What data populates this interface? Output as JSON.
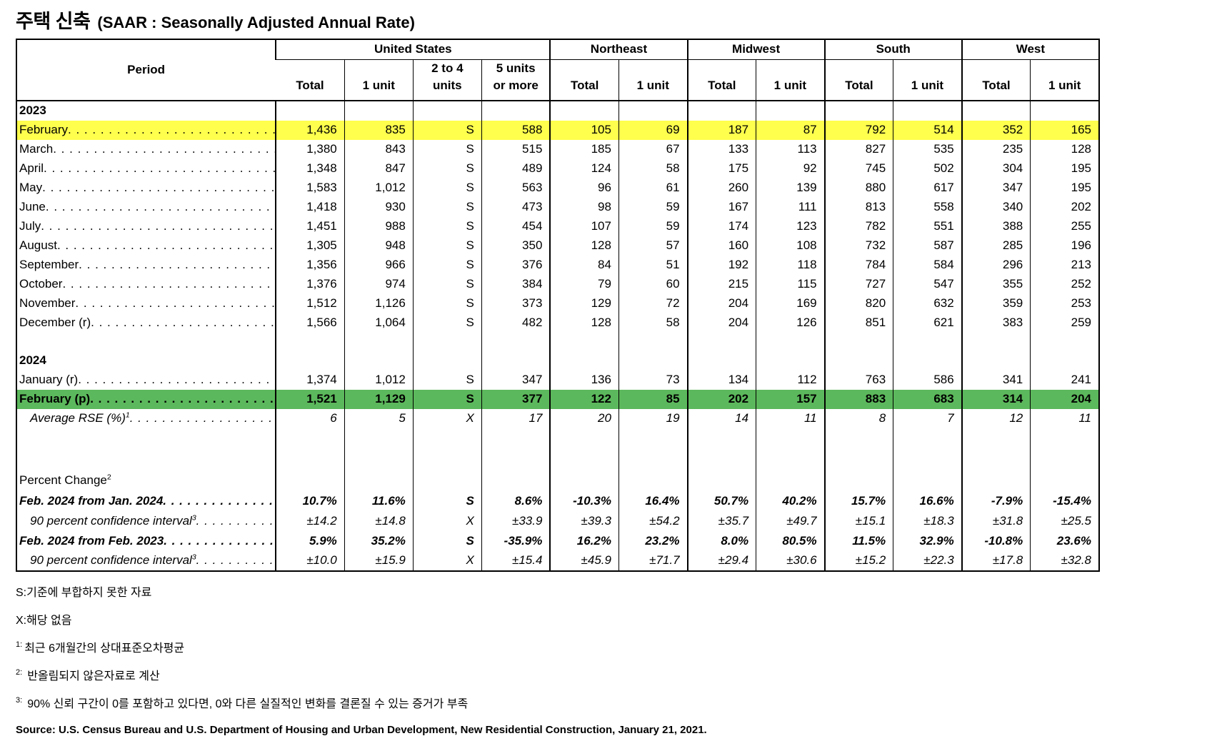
{
  "title": {
    "korean": "주택 신축",
    "english": "(SAAR : Seasonally Adjusted Annual Rate)"
  },
  "colors": {
    "highlight_yellow": "#FFFF4D",
    "highlight_green": "#5CB85C"
  },
  "table": {
    "period_header": "Period",
    "groups": [
      {
        "label": "United States",
        "span": 4
      },
      {
        "label": "Northeast",
        "span": 2
      },
      {
        "label": "Midwest",
        "span": 2
      },
      {
        "label": "South",
        "span": 2
      },
      {
        "label": "West",
        "span": 2
      }
    ],
    "subheaders": [
      "Total",
      "1 unit",
      "2 to 4\nunits",
      "5 units\nor more",
      "Total",
      "1 unit",
      "Total",
      "1 unit",
      "Total",
      "1 unit",
      "Total",
      "1 unit"
    ],
    "rows": [
      {
        "t": "year",
        "label": "2023"
      },
      {
        "t": "m",
        "label": "February",
        "hl": "yellow",
        "v": [
          "1,436",
          "835",
          "S",
          "588",
          "105",
          "69",
          "187",
          "87",
          "792",
          "514",
          "352",
          "165"
        ]
      },
      {
        "t": "m",
        "label": "March",
        "v": [
          "1,380",
          "843",
          "S",
          "515",
          "185",
          "67",
          "133",
          "113",
          "827",
          "535",
          "235",
          "128"
        ]
      },
      {
        "t": "m",
        "label": "April",
        "v": [
          "1,348",
          "847",
          "S",
          "489",
          "124",
          "58",
          "175",
          "92",
          "745",
          "502",
          "304",
          "195"
        ]
      },
      {
        "t": "m",
        "label": "May",
        "v": [
          "1,583",
          "1,012",
          "S",
          "563",
          "96",
          "61",
          "260",
          "139",
          "880",
          "617",
          "347",
          "195"
        ]
      },
      {
        "t": "m",
        "label": "June",
        "v": [
          "1,418",
          "930",
          "S",
          "473",
          "98",
          "59",
          "167",
          "111",
          "813",
          "558",
          "340",
          "202"
        ]
      },
      {
        "t": "m",
        "label": "July",
        "v": [
          "1,451",
          "988",
          "S",
          "454",
          "107",
          "59",
          "174",
          "123",
          "782",
          "551",
          "388",
          "255"
        ]
      },
      {
        "t": "m",
        "label": "August",
        "v": [
          "1,305",
          "948",
          "S",
          "350",
          "128",
          "57",
          "160",
          "108",
          "732",
          "587",
          "285",
          "196"
        ]
      },
      {
        "t": "m",
        "label": "September",
        "v": [
          "1,356",
          "966",
          "S",
          "376",
          "84",
          "51",
          "192",
          "118",
          "784",
          "584",
          "296",
          "213"
        ]
      },
      {
        "t": "m",
        "label": "October",
        "v": [
          "1,376",
          "974",
          "S",
          "384",
          "79",
          "60",
          "215",
          "115",
          "727",
          "547",
          "355",
          "252"
        ]
      },
      {
        "t": "m",
        "label": "November",
        "v": [
          "1,512",
          "1,126",
          "S",
          "373",
          "129",
          "72",
          "204",
          "169",
          "820",
          "632",
          "359",
          "253"
        ]
      },
      {
        "t": "m",
        "label": "December (r)",
        "v": [
          "1,566",
          "1,064",
          "S",
          "482",
          "128",
          "58",
          "204",
          "126",
          "851",
          "621",
          "383",
          "259"
        ]
      },
      {
        "t": "sp"
      },
      {
        "t": "year",
        "label": "2024"
      },
      {
        "t": "m",
        "label": "January (r)",
        "v": [
          "1,374",
          "1,012",
          "S",
          "347",
          "136",
          "73",
          "134",
          "112",
          "763",
          "586",
          "341",
          "241"
        ]
      },
      {
        "t": "m",
        "label": "February (p)",
        "hl": "green",
        "v": [
          "1,521",
          "1,129",
          "S",
          "377",
          "122",
          "85",
          "202",
          "157",
          "883",
          "683",
          "314",
          "204"
        ]
      },
      {
        "t": "rse",
        "label": "Average RSE (%)",
        "sup": "1",
        "v": [
          "6",
          "5",
          "X",
          "17",
          "20",
          "19",
          "14",
          "11",
          "8",
          "7",
          "12",
          "11"
        ]
      },
      {
        "t": "sp2"
      },
      {
        "t": "plabel",
        "label": "Percent Change",
        "sup": "2"
      },
      {
        "t": "pct",
        "label": "Feb. 2024 from Jan. 2024",
        "v": [
          "10.7%",
          "11.6%",
          "S",
          "8.6%",
          "-10.3%",
          "16.4%",
          "50.7%",
          "40.2%",
          "15.7%",
          "16.6%",
          "-7.9%",
          "-15.4%"
        ]
      },
      {
        "t": "ci",
        "label": "90 percent confidence interval",
        "sup": "3",
        "v": [
          "±14.2",
          "±14.8",
          "X",
          "±33.9",
          "±39.3",
          "±54.2",
          "±35.7",
          "±49.7",
          "±15.1",
          "±18.3",
          "±31.8",
          "±25.5"
        ]
      },
      {
        "t": "pct",
        "label": "Feb. 2024 from Feb. 2023",
        "v": [
          "5.9%",
          "35.2%",
          "S",
          "-35.9%",
          "16.2%",
          "23.2%",
          "8.0%",
          "80.5%",
          "11.5%",
          "32.9%",
          "-10.8%",
          "23.6%"
        ]
      },
      {
        "t": "ci",
        "label": "90 percent confidence interval",
        "sup": "3",
        "v": [
          "±10.0",
          "±15.9",
          "X",
          "±15.4",
          "±45.9",
          "±71.7",
          "±29.4",
          "±30.6",
          "±15.2",
          "±22.3",
          "±17.8",
          "±32.8"
        ]
      }
    ]
  },
  "footnotes": [
    {
      "mark": "S:",
      "superscript": false,
      "text": "기준에 부합하지 못한 자료"
    },
    {
      "mark": "X:",
      "superscript": false,
      "text": "해당 없음"
    },
    {
      "mark": "1:",
      "superscript": true,
      "text": "최근 6개월간의 상대표준오차평균"
    },
    {
      "mark": "2:",
      "superscript": true,
      "text": "반올림되지 않은자료로 계산"
    },
    {
      "mark": "3:",
      "superscript": true,
      "text": "90% 신뢰 구간이 0를 포함하고 있다면, 0와 다른 실질적인 변화를 결론질 수 있는 증거가 부족"
    }
  ],
  "source": "Source: U.S. Census Bureau and U.S. Department of Housing and Urban Development, New Residential Construction, January 21, 2021."
}
